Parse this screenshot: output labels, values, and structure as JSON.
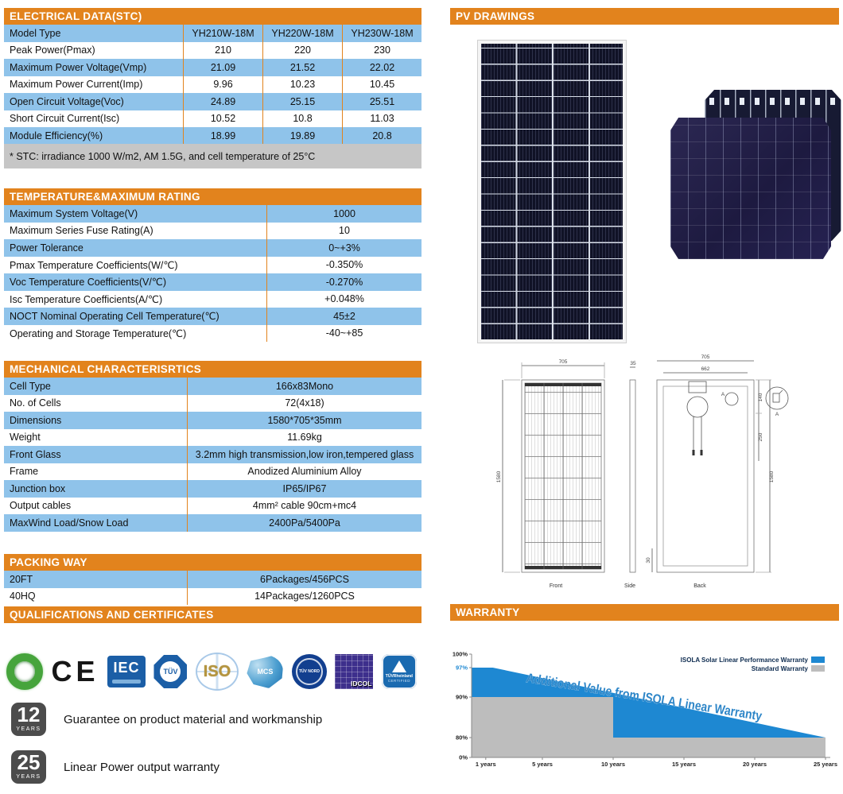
{
  "electrical": {
    "title": "ELECTRICAL DATA(STC)",
    "header": [
      "Model Type",
      "YH210W-18M",
      "YH220W-18M",
      "YH230W-18M"
    ],
    "rows": [
      {
        "label": "Peak Power(Pmax)",
        "values": [
          "210",
          "220",
          "230"
        ]
      },
      {
        "label": "Maximum Power Voltage(Vmp)",
        "values": [
          "21.09",
          "21.52",
          "22.02"
        ]
      },
      {
        "label": "Maximum Power Current(Imp)",
        "values": [
          "9.96",
          "10.23",
          "10.45"
        ]
      },
      {
        "label": "Open Circuit Voltage(Voc)",
        "values": [
          "24.89",
          "25.15",
          "25.51"
        ]
      },
      {
        "label": "Short Circuit Current(Isc)",
        "values": [
          "10.52",
          "10.8",
          "11.03"
        ]
      },
      {
        "label": "Module Efficiency(%)",
        "values": [
          "18.99",
          "19.89",
          "20.8"
        ]
      }
    ],
    "note": "* STC:  irradiance 1000 W/m2, AM 1.5G, and cell temperature of 25°C"
  },
  "temperature": {
    "title": "TEMPERATURE&MAXIMUM  RATING",
    "rows": [
      {
        "label": "Maximum System Voltage(V)",
        "value": "1000"
      },
      {
        "label": "Maximum Series Fuse Rating(A)",
        "value": "10"
      },
      {
        "label": "Power Tolerance",
        "value": "0~+3%"
      },
      {
        "label": "Pmax Temperature Coefficients(W/℃)",
        "value": "-0.350%"
      },
      {
        "label": "Voc Temperature Coefficients(V/℃)",
        "value": "-0.270%"
      },
      {
        "label": "Isc Temperature Coefficients(A/℃)",
        "value": "+0.048%"
      },
      {
        "label": "NOCT Nominal Operating Cell Temperature(℃)",
        "value": "45±2"
      },
      {
        "label": "Operating and Storage Temperature(℃)",
        "value": "-40~+85"
      }
    ]
  },
  "mechanical": {
    "title": "MECHANICAL CHARACTERISRTICS",
    "rows": [
      {
        "label": "Cell Type",
        "value": "166x83Mono"
      },
      {
        "label": "No. of Cells",
        "value": "72(4x18)"
      },
      {
        "label": "Dimensions",
        "value": "1580*705*35mm"
      },
      {
        "label": "Weight",
        "value": "11.69kg"
      },
      {
        "label": "Front Glass",
        "value": "3.2mm high transmission,low iron,tempered glass"
      },
      {
        "label": "Frame",
        "value": "Anodized Aluminium Alloy"
      },
      {
        "label": "Junction box",
        "value": "IP65/IP67"
      },
      {
        "label": "Output cables",
        "value": "4mm² cable 90cm+mc4"
      },
      {
        "label": "MaxWind Load/Snow Load",
        "value": "2400Pa/5400Pa"
      }
    ]
  },
  "packing": {
    "title": "PACKING WAY",
    "rows": [
      {
        "label": "20FT",
        "value": "6Packages/456PCS"
      },
      {
        "label": "40HQ",
        "value": "14Packages/1260PCS"
      }
    ]
  },
  "qualifications": {
    "title": "QUALIFICATIONS AND CERTIFICATES",
    "logos": {
      "iec": "IEC",
      "ce": "CE",
      "tuv_sud": "TÜV",
      "iso": "ISO",
      "mcs": "MCS",
      "tuv_nord": "TÜV NORD",
      "idcol": "IDCOL",
      "tuv_rheinland": "TÜVRheinland",
      "certified": "CERTIFIED"
    }
  },
  "badges": [
    {
      "number": "12",
      "unit": "YEARS",
      "text": "Guarantee on product material and workmanship"
    },
    {
      "number": "25",
      "unit": "YEARS",
      "text": "Linear Power output warranty"
    }
  ],
  "pv_drawings": {
    "title": "PV DRAWINGS",
    "dims": {
      "front_width": "705",
      "height_left": "1580",
      "thickness": "35",
      "back_width": "705",
      "back_inner_width": "662",
      "jbox_offset": "140",
      "cable_drop": "250",
      "height_right": "1580",
      "frame_bottom": "30",
      "detail_marker": "A"
    },
    "view_labels": {
      "front": "Front",
      "side": "Side",
      "back": "Back"
    }
  },
  "warranty": {
    "title": "WARRANTY",
    "chart_data": {
      "type": "area",
      "annotation": "Additional Value from ISOLA Linear Warranty",
      "annotation_color": "#2e86c8",
      "xlim": [
        0,
        25
      ],
      "x_ticks": [
        {
          "year": 1,
          "label": "1 years"
        },
        {
          "year": 5,
          "label": "5 years"
        },
        {
          "year": 10,
          "label": "10 years"
        },
        {
          "year": 15,
          "label": "15 years"
        },
        {
          "year": 20,
          "label": "20 years"
        },
        {
          "year": 25,
          "label": "25 years"
        }
      ],
      "y_ticks": [
        {
          "value": 0,
          "label": "0%"
        },
        {
          "value": 80,
          "label": "80%"
        },
        {
          "value": 90,
          "label": "90%"
        },
        {
          "value": 97,
          "label": "97%"
        },
        {
          "value": 100,
          "label": "100%"
        }
      ],
      "series": [
        {
          "name": "ISOLA Solar Linear Performance Warranty",
          "color": "#1e88d2",
          "points": [
            [
              0,
              97
            ],
            [
              1.5,
              97
            ],
            [
              25,
              80
            ]
          ]
        },
        {
          "name": "Standard Warranty",
          "color": "#bdbdbd",
          "points": [
            [
              0,
              90
            ],
            [
              10,
              90
            ],
            [
              10,
              80
            ],
            [
              25,
              80
            ]
          ]
        }
      ],
      "legend_position": "top-right"
    }
  }
}
